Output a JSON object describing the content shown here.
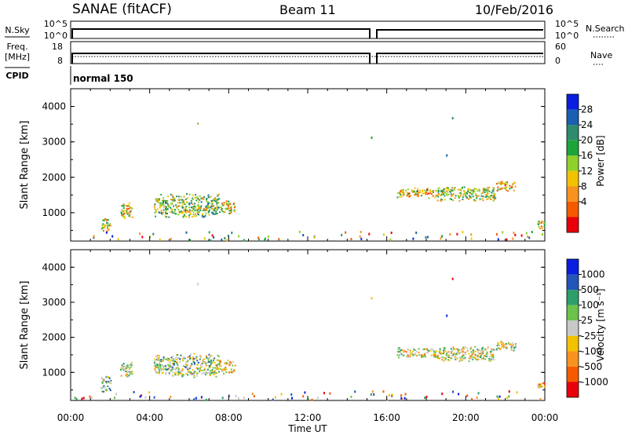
{
  "header": {
    "station": "SANAE (fitACF)",
    "beam": "Beam 11",
    "date": "10/Feb/2016"
  },
  "top_panels": {
    "nsky_label": "N.Sky",
    "nsky_ticks": [
      "10^5",
      "10^0"
    ],
    "nsearch_label": "N.Search",
    "nsearch_ticks": [
      "10^5",
      "10^0"
    ],
    "freq_label": "Freq.",
    "freq_unit": "[MHz]",
    "freq_ticks": [
      "18",
      "8"
    ],
    "nave_label": "Nave",
    "nave_ticks": [
      "60",
      "0"
    ],
    "cpid_label": "CPID",
    "cpid_value": "normal 150"
  },
  "chart_data": [
    {
      "type": "heatmap",
      "panel": "power",
      "ylabel": "Slant Range [km]",
      "xlabel": "",
      "ylim": [
        200,
        4500
      ],
      "yticks": [
        1000,
        2000,
        3000,
        4000
      ],
      "xlim_hours": [
        0,
        24
      ],
      "colorbar": {
        "label": "Power [dB]",
        "ticks": [
          "28",
          "24",
          "20",
          "16",
          "12",
          "8",
          "4"
        ],
        "colors": [
          "#e8000b",
          "#f55a00",
          "#f7931e",
          "#f2c200",
          "#8fd12a",
          "#1ea53a",
          "#2e8b6e",
          "#1a5fb0",
          "#0a1ee0"
        ]
      },
      "clusters": [
        {
          "t": [
            1.5,
            2.0
          ],
          "r": [
            400,
            900
          ],
          "level": 0.45
        },
        {
          "t": [
            2.5,
            3.1
          ],
          "r": [
            800,
            1300
          ],
          "level": 0.4
        },
        {
          "t": [
            4.2,
            7.5
          ],
          "r": [
            850,
            1550
          ],
          "level": 0.55
        },
        {
          "t": [
            7.5,
            8.3
          ],
          "r": [
            950,
            1350
          ],
          "level": 0.4
        },
        {
          "t": [
            16.5,
            18.5
          ],
          "r": [
            1400,
            1700
          ],
          "level": 0.35
        },
        {
          "t": [
            18.5,
            21.5
          ],
          "r": [
            1300,
            1750
          ],
          "level": 0.5
        },
        {
          "t": [
            21.5,
            22.5
          ],
          "r": [
            1600,
            1900
          ],
          "level": 0.35
        },
        {
          "t": [
            23.6,
            24.0
          ],
          "r": [
            500,
            800
          ],
          "level": 0.4
        }
      ]
    },
    {
      "type": "heatmap",
      "panel": "velocity",
      "ylabel": "Slant Range [km]",
      "xlabel": "Time UT",
      "ylim": [
        200,
        4500
      ],
      "yticks": [
        1000,
        2000,
        3000,
        4000
      ],
      "xlim_hours": [
        0,
        24
      ],
      "xtick_labels": [
        "00:00",
        "04:00",
        "08:00",
        "12:00",
        "16:00",
        "20:00",
        "00:00"
      ],
      "colorbar": {
        "label": "Velocity [m s⁻¹]",
        "ticks": [
          "1000",
          "500",
          "100",
          "25",
          "-25",
          "-100",
          "-500",
          "-1000"
        ],
        "colors": [
          "#0a1ee0",
          "#2456b8",
          "#2e9e6a",
          "#6cc24a",
          "#c8c8c8",
          "#f2c200",
          "#f7931e",
          "#f55a00",
          "#e8000b"
        ]
      },
      "clusters": [
        {
          "t": [
            1.5,
            2.0
          ],
          "r": [
            400,
            900
          ],
          "level": 0.4
        },
        {
          "t": [
            2.5,
            3.1
          ],
          "r": [
            800,
            1300
          ],
          "level": 0.5
        },
        {
          "t": [
            4.2,
            7.5
          ],
          "r": [
            850,
            1550
          ],
          "level": 0.45
        },
        {
          "t": [
            7.5,
            8.3
          ],
          "r": [
            950,
            1350
          ],
          "level": 0.6
        },
        {
          "t": [
            16.5,
            18.5
          ],
          "r": [
            1400,
            1700
          ],
          "level": 0.55
        },
        {
          "t": [
            18.5,
            21.5
          ],
          "r": [
            1300,
            1750
          ],
          "level": 0.5
        },
        {
          "t": [
            21.5,
            22.5
          ],
          "r": [
            1600,
            1900
          ],
          "level": 0.5
        },
        {
          "t": [
            23.6,
            24.0
          ],
          "r": [
            500,
            800
          ],
          "level": 0.7
        }
      ]
    }
  ]
}
